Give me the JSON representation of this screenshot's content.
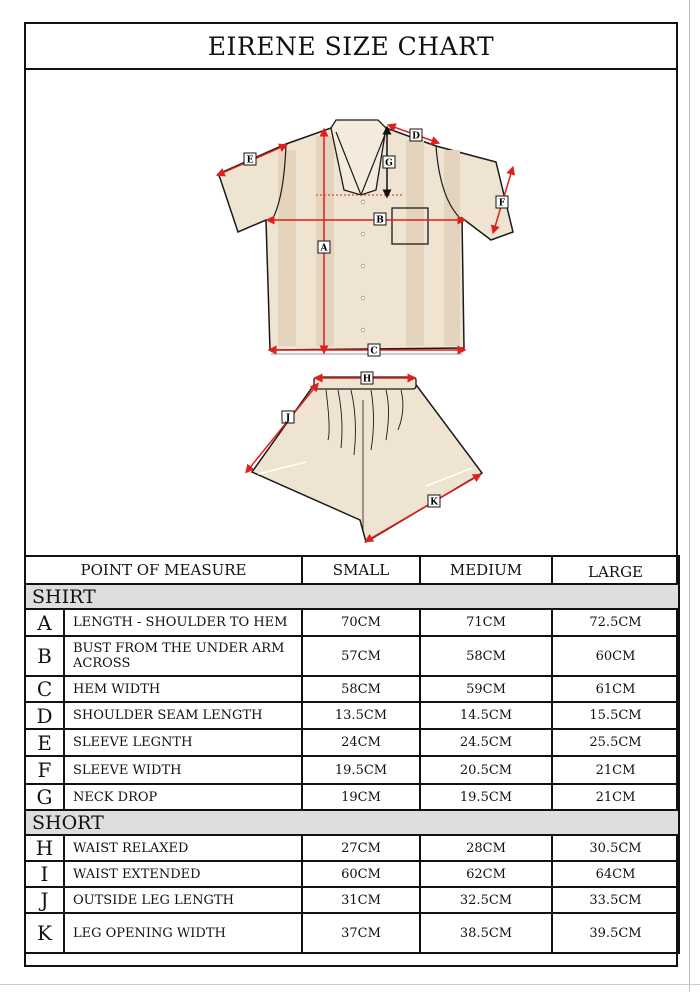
{
  "title": "EIRENE SIZE CHART",
  "diagram": {
    "labels": [
      "A",
      "B",
      "C",
      "D",
      "E",
      "F",
      "G",
      "H",
      "J",
      "K"
    ],
    "colors": {
      "fabric": "#efe3d2",
      "stripe": "#e4d3bd",
      "arrow": "#e0201a",
      "outline": "#1a1a1a"
    }
  },
  "table": {
    "headers": [
      "POINT OF MEASURE",
      "SMALL",
      "MEDIUM",
      "LARGE"
    ],
    "sections": [
      {
        "name": "SHIRT",
        "rows": [
          {
            "code": "A",
            "label": "LENGTH - SHOULDER TO HEM",
            "small": "70CM",
            "medium": "71CM",
            "large": "72.5CM"
          },
          {
            "code": "B",
            "label": "BUST FROM THE UNDER ARM ACROSS",
            "small": "57CM",
            "medium": "58CM",
            "large": "60CM"
          },
          {
            "code": "C",
            "label": "HEM WIDTH",
            "small": "58CM",
            "medium": "59CM",
            "large": "61CM"
          },
          {
            "code": "D",
            "label": "SHOULDER SEAM LENGTH",
            "small": "13.5CM",
            "medium": "14.5CM",
            "large": "15.5CM"
          },
          {
            "code": "E",
            "label": "SLEEVE LEGNTH",
            "small": "24CM",
            "medium": "24.5CM",
            "large": "25.5CM"
          },
          {
            "code": "F",
            "label": "SLEEVE WIDTH",
            "small": "19.5CM",
            "medium": "20.5CM",
            "large": "21CM"
          },
          {
            "code": "G",
            "label": "NECK DROP",
            "small": "19CM",
            "medium": "19.5CM",
            "large": "21CM"
          }
        ]
      },
      {
        "name": "SHORT",
        "rows": [
          {
            "code": "H",
            "label": "WAIST RELAXED",
            "small": "27CM",
            "medium": "28CM",
            "large": "30.5CM"
          },
          {
            "code": "I",
            "label": "WAIST EXTENDED",
            "small": "60CM",
            "medium": "62CM",
            "large": "64CM"
          },
          {
            "code": "J",
            "label": "OUTSIDE LEG LENGTH",
            "small": "31CM",
            "medium": "32.5CM",
            "large": "33.5CM"
          },
          {
            "code": "K",
            "label": "LEG OPENING WIDTH",
            "small": "37CM",
            "medium": "38.5CM",
            "large": "39.5CM"
          }
        ]
      }
    ]
  }
}
